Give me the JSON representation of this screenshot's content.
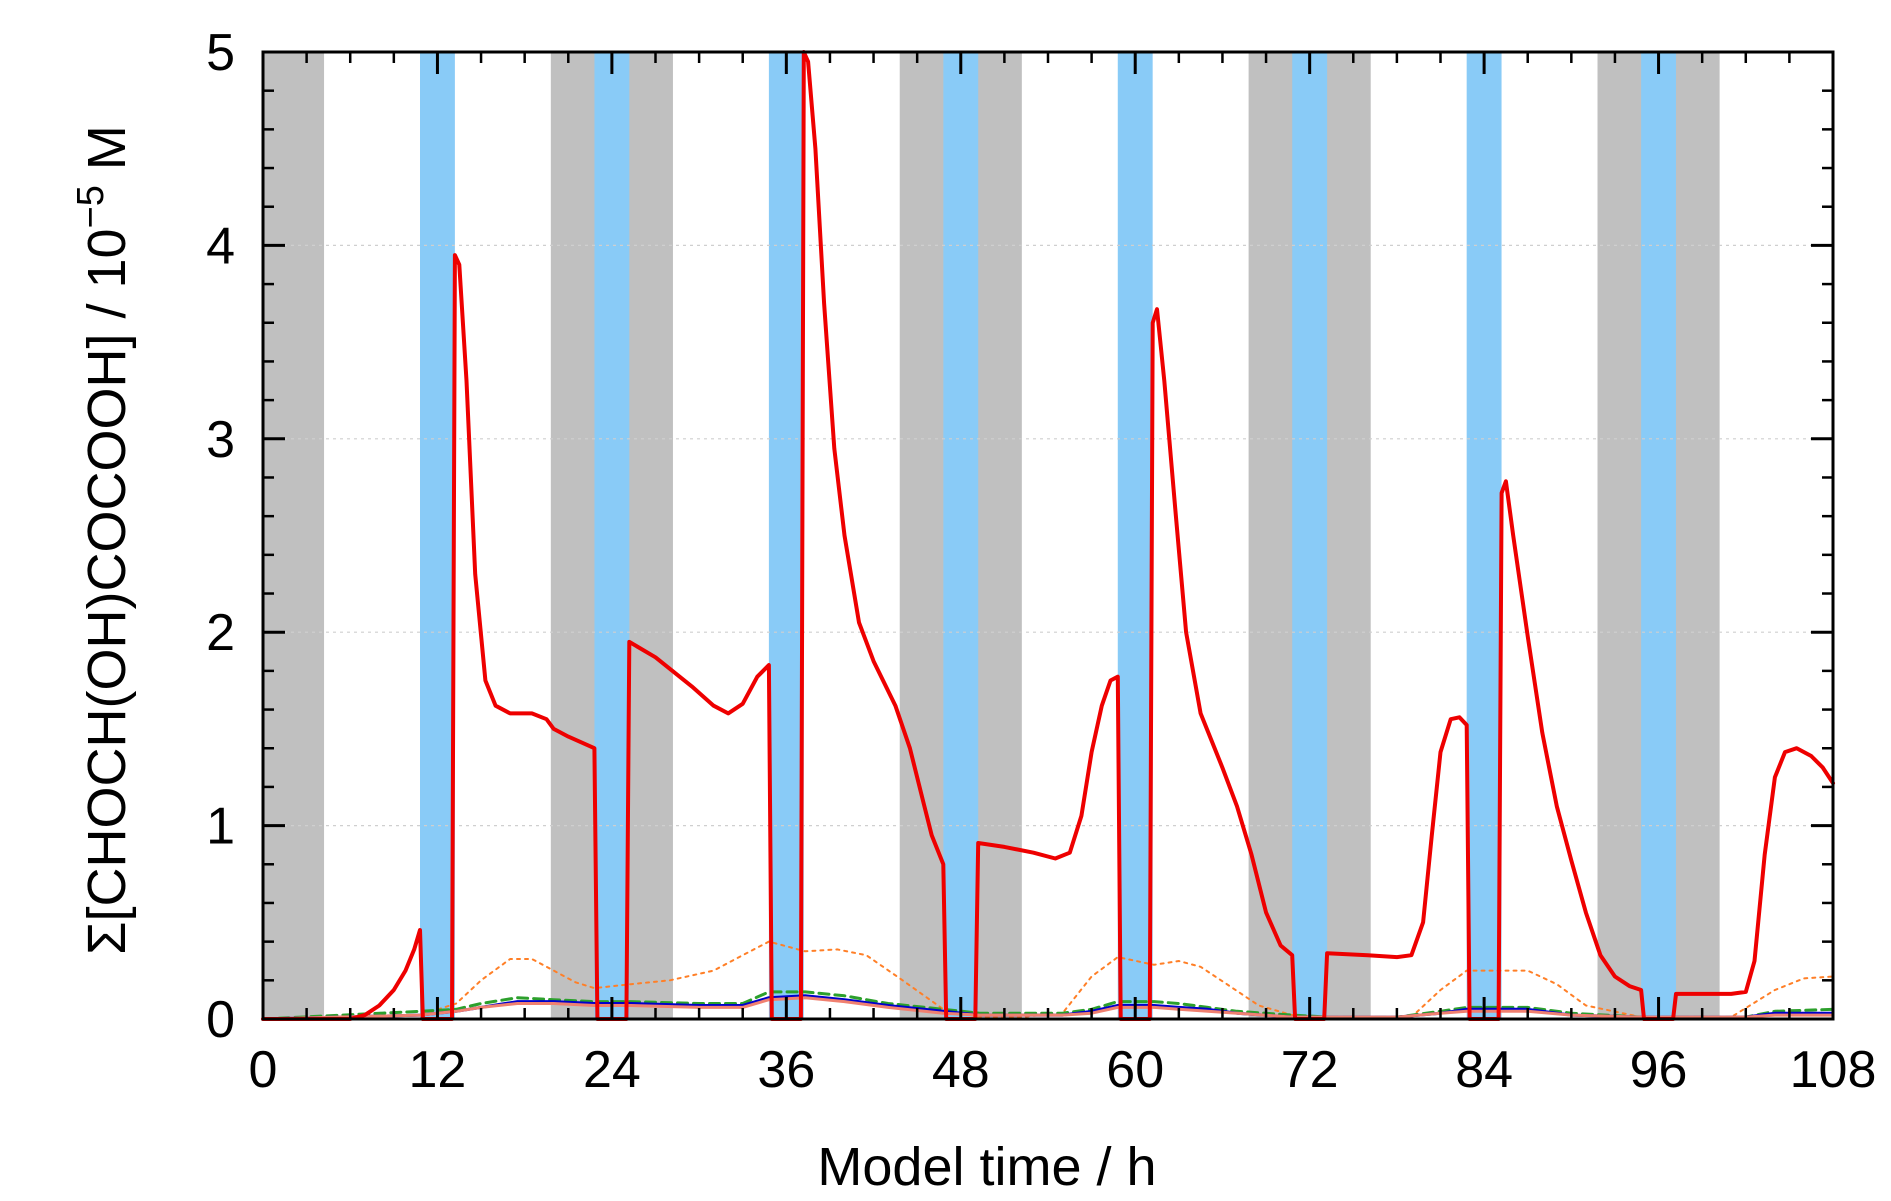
{
  "chart_data": {
    "type": "line",
    "xlabel": "Model time / h",
    "ylabel_parts": {
      "pre": "Σ[CHOCH(OH)COCOOH] / 10",
      "sup": "−5",
      "post": " M"
    },
    "xlim": [
      0,
      108
    ],
    "ylim": [
      0,
      5
    ],
    "xticks": [
      0,
      12,
      24,
      36,
      48,
      60,
      72,
      84,
      96,
      108
    ],
    "yticks": [
      0,
      1,
      2,
      3,
      4,
      5
    ],
    "y_grid": true,
    "shaded_bands": {
      "night": {
        "color": "#c0c0c0",
        "intervals": [
          [
            0,
            4.2
          ],
          [
            19.8,
            28.2
          ],
          [
            43.8,
            52.2
          ],
          [
            67.8,
            76.2
          ],
          [
            91.8,
            100.2
          ]
        ]
      },
      "cloud": {
        "color": "#89cbf7",
        "intervals": [
          [
            10.8,
            13.2
          ],
          [
            22.8,
            25.2
          ],
          [
            34.8,
            37.2
          ],
          [
            46.8,
            49.2
          ],
          [
            58.8,
            61.2
          ],
          [
            70.8,
            73.2
          ],
          [
            82.8,
            85.2
          ],
          [
            94.8,
            97.2
          ]
        ]
      }
    },
    "series": [
      {
        "color": "#ff7f27",
        "dash": "dotted",
        "width": 2,
        "points": [
          [
            0,
            0
          ],
          [
            10.8,
            0.02
          ],
          [
            13.3,
            0.08
          ],
          [
            15,
            0.2
          ],
          [
            17,
            0.31
          ],
          [
            18.5,
            0.31
          ],
          [
            20,
            0.25
          ],
          [
            21.5,
            0.19
          ],
          [
            22.8,
            0.16
          ],
          [
            25.3,
            0.18
          ],
          [
            28,
            0.2
          ],
          [
            31,
            0.25
          ],
          [
            33,
            0.33
          ],
          [
            34.8,
            0.4
          ],
          [
            37.3,
            0.35
          ],
          [
            39.5,
            0.36
          ],
          [
            41.5,
            0.33
          ],
          [
            44,
            0.2
          ],
          [
            46.8,
            0.05
          ],
          [
            49.3,
            0.01
          ],
          [
            52,
            0.01
          ],
          [
            55,
            0.03
          ],
          [
            57,
            0.22
          ],
          [
            58.8,
            0.32
          ],
          [
            61.3,
            0.28
          ],
          [
            63,
            0.3
          ],
          [
            64.5,
            0.27
          ],
          [
            66.5,
            0.17
          ],
          [
            68.5,
            0.07
          ],
          [
            70.8,
            0.02
          ],
          [
            73.3,
            0.01
          ],
          [
            79,
            0.01
          ],
          [
            81,
            0.15
          ],
          [
            82.8,
            0.25
          ],
          [
            85.3,
            0.25
          ],
          [
            87,
            0.25
          ],
          [
            89,
            0.18
          ],
          [
            91,
            0.07
          ],
          [
            94.8,
            0.01
          ],
          [
            97.3,
            0
          ],
          [
            101,
            0.01
          ],
          [
            104,
            0.15
          ],
          [
            106,
            0.21
          ],
          [
            108,
            0.22
          ]
        ]
      },
      {
        "color": "#2ca02c",
        "dash": "dashed",
        "width": 3,
        "points": [
          [
            0,
            0
          ],
          [
            10.8,
            0.04
          ],
          [
            13.3,
            0.05
          ],
          [
            15,
            0.08
          ],
          [
            17.5,
            0.11
          ],
          [
            20,
            0.1
          ],
          [
            22.8,
            0.09
          ],
          [
            25.3,
            0.09
          ],
          [
            30,
            0.08
          ],
          [
            33,
            0.08
          ],
          [
            34.8,
            0.14
          ],
          [
            37.3,
            0.14
          ],
          [
            40,
            0.12
          ],
          [
            43,
            0.08
          ],
          [
            46.8,
            0.05
          ],
          [
            49.3,
            0.03
          ],
          [
            52,
            0.03
          ],
          [
            55,
            0.03
          ],
          [
            57,
            0.05
          ],
          [
            58.8,
            0.09
          ],
          [
            61.3,
            0.09
          ],
          [
            63,
            0.08
          ],
          [
            65,
            0.06
          ],
          [
            67,
            0.04
          ],
          [
            70.8,
            0.02
          ],
          [
            73.3,
            0.01
          ],
          [
            78,
            0.01
          ],
          [
            81,
            0.04
          ],
          [
            82.8,
            0.06
          ],
          [
            85.3,
            0.06
          ],
          [
            87,
            0.06
          ],
          [
            90,
            0.03
          ],
          [
            94.8,
            0.01
          ],
          [
            97.3,
            0.01
          ],
          [
            102,
            0.01
          ],
          [
            104,
            0.04
          ],
          [
            108,
            0.05
          ]
        ]
      },
      {
        "color": "#0000cc",
        "dash": "solid",
        "width": 3,
        "points": [
          [
            0,
            0
          ],
          [
            10.8,
            0.02
          ],
          [
            13.3,
            0.04
          ],
          [
            15,
            0.06
          ],
          [
            17.5,
            0.09
          ],
          [
            20,
            0.09
          ],
          [
            22.8,
            0.08
          ],
          [
            25.3,
            0.08
          ],
          [
            30,
            0.07
          ],
          [
            33,
            0.07
          ],
          [
            34.8,
            0.11
          ],
          [
            37.3,
            0.12
          ],
          [
            40,
            0.1
          ],
          [
            43,
            0.07
          ],
          [
            46.8,
            0.04
          ],
          [
            49.3,
            0.02
          ],
          [
            52,
            0.02
          ],
          [
            55,
            0.02
          ],
          [
            57,
            0.04
          ],
          [
            58.8,
            0.07
          ],
          [
            61.3,
            0.07
          ],
          [
            63,
            0.06
          ],
          [
            65,
            0.05
          ],
          [
            67,
            0.03
          ],
          [
            70.8,
            0.01
          ],
          [
            73.3,
            0.01
          ],
          [
            78,
            0.01
          ],
          [
            81,
            0.03
          ],
          [
            82.8,
            0.05
          ],
          [
            85.3,
            0.05
          ],
          [
            87,
            0.05
          ],
          [
            90,
            0.02
          ],
          [
            94.8,
            0.01
          ],
          [
            97.3,
            0.01
          ],
          [
            102,
            0.01
          ],
          [
            104,
            0.03
          ],
          [
            108,
            0.03
          ]
        ]
      },
      {
        "color": "#f08070",
        "dash": "solid",
        "width": 3,
        "points": [
          [
            0,
            0
          ],
          [
            10.8,
            0.02
          ],
          [
            13.3,
            0.04
          ],
          [
            15,
            0.06
          ],
          [
            17.5,
            0.08
          ],
          [
            20,
            0.08
          ],
          [
            22.8,
            0.07
          ],
          [
            25.3,
            0.07
          ],
          [
            30,
            0.06
          ],
          [
            33,
            0.06
          ],
          [
            34.8,
            0.1
          ],
          [
            37.3,
            0.11
          ],
          [
            40,
            0.09
          ],
          [
            43,
            0.06
          ],
          [
            46.8,
            0.03
          ],
          [
            49.3,
            0.02
          ],
          [
            52,
            0.02
          ],
          [
            55,
            0.02
          ],
          [
            57,
            0.03
          ],
          [
            58.8,
            0.06
          ],
          [
            61.3,
            0.06
          ],
          [
            63,
            0.05
          ],
          [
            65,
            0.04
          ],
          [
            67,
            0.03
          ],
          [
            70.8,
            0.01
          ],
          [
            73.3,
            0.01
          ],
          [
            78,
            0.01
          ],
          [
            81,
            0.03
          ],
          [
            82.8,
            0.04
          ],
          [
            85.3,
            0.04
          ],
          [
            87,
            0.04
          ],
          [
            90,
            0.02
          ],
          [
            94.8,
            0.01
          ],
          [
            97.3,
            0.01
          ],
          [
            102,
            0.01
          ],
          [
            104,
            0.02
          ],
          [
            108,
            0.02
          ]
        ]
      },
      {
        "color": "#ee0000",
        "dash": "solid",
        "width": 4,
        "points": [
          [
            0,
            0
          ],
          [
            6,
            0
          ],
          [
            7,
            0.02
          ],
          [
            8,
            0.07
          ],
          [
            9,
            0.15
          ],
          [
            9.8,
            0.25
          ],
          [
            10.4,
            0.36
          ],
          [
            10.8,
            0.46
          ],
          [
            11,
            0
          ],
          [
            13,
            0
          ],
          [
            13.2,
            3.95
          ],
          [
            13.5,
            3.9
          ],
          [
            14,
            3.3
          ],
          [
            14.6,
            2.3
          ],
          [
            15.3,
            1.75
          ],
          [
            16,
            1.62
          ],
          [
            17,
            1.58
          ],
          [
            18.5,
            1.58
          ],
          [
            19.5,
            1.55
          ],
          [
            20,
            1.5
          ],
          [
            21,
            1.46
          ],
          [
            22.8,
            1.4
          ],
          [
            23,
            0
          ],
          [
            25,
            0
          ],
          [
            25.2,
            1.95
          ],
          [
            27,
            1.87
          ],
          [
            29.5,
            1.72
          ],
          [
            31,
            1.62
          ],
          [
            32,
            1.58
          ],
          [
            33,
            1.63
          ],
          [
            34,
            1.77
          ],
          [
            34.8,
            1.83
          ],
          [
            35,
            0
          ],
          [
            37,
            0
          ],
          [
            37.2,
            5.0
          ],
          [
            37.5,
            4.95
          ],
          [
            38,
            4.5
          ],
          [
            38.6,
            3.7
          ],
          [
            39.3,
            2.95
          ],
          [
            40,
            2.5
          ],
          [
            41,
            2.05
          ],
          [
            42,
            1.85
          ],
          [
            43.5,
            1.62
          ],
          [
            44.5,
            1.4
          ],
          [
            45.5,
            1.1
          ],
          [
            46,
            0.95
          ],
          [
            46.8,
            0.8
          ],
          [
            47,
            0
          ],
          [
            49,
            0
          ],
          [
            49.2,
            0.91
          ],
          [
            51,
            0.89
          ],
          [
            53,
            0.86
          ],
          [
            54.5,
            0.83
          ],
          [
            55.5,
            0.86
          ],
          [
            56.3,
            1.05
          ],
          [
            57,
            1.38
          ],
          [
            57.7,
            1.62
          ],
          [
            58.3,
            1.75
          ],
          [
            58.8,
            1.77
          ],
          [
            59,
            0
          ],
          [
            61,
            0
          ],
          [
            61.2,
            3.6
          ],
          [
            61.5,
            3.67
          ],
          [
            62,
            3.3
          ],
          [
            62.8,
            2.6
          ],
          [
            63.5,
            2.0
          ],
          [
            64.5,
            1.58
          ],
          [
            66,
            1.3
          ],
          [
            67,
            1.1
          ],
          [
            68,
            0.85
          ],
          [
            69,
            0.55
          ],
          [
            70,
            0.38
          ],
          [
            70.8,
            0.33
          ],
          [
            71,
            0
          ],
          [
            73,
            0
          ],
          [
            73.2,
            0.34
          ],
          [
            76,
            0.33
          ],
          [
            78,
            0.32
          ],
          [
            79,
            0.33
          ],
          [
            79.8,
            0.5
          ],
          [
            80.4,
            0.95
          ],
          [
            81,
            1.38
          ],
          [
            81.7,
            1.55
          ],
          [
            82.3,
            1.56
          ],
          [
            82.8,
            1.52
          ],
          [
            83,
            0
          ],
          [
            85,
            0
          ],
          [
            85.2,
            2.72
          ],
          [
            85.5,
            2.78
          ],
          [
            86,
            2.5
          ],
          [
            87,
            1.98
          ],
          [
            88,
            1.48
          ],
          [
            89,
            1.1
          ],
          [
            90,
            0.82
          ],
          [
            91,
            0.55
          ],
          [
            92,
            0.33
          ],
          [
            93,
            0.22
          ],
          [
            94,
            0.17
          ],
          [
            94.8,
            0.15
          ],
          [
            95,
            0
          ],
          [
            97,
            0
          ],
          [
            97.2,
            0.13
          ],
          [
            99,
            0.13
          ],
          [
            101,
            0.13
          ],
          [
            102,
            0.14
          ],
          [
            102.6,
            0.3
          ],
          [
            103.3,
            0.85
          ],
          [
            104,
            1.25
          ],
          [
            104.7,
            1.38
          ],
          [
            105.5,
            1.4
          ],
          [
            106.5,
            1.36
          ],
          [
            107.3,
            1.3
          ],
          [
            108,
            1.22
          ]
        ]
      }
    ]
  }
}
